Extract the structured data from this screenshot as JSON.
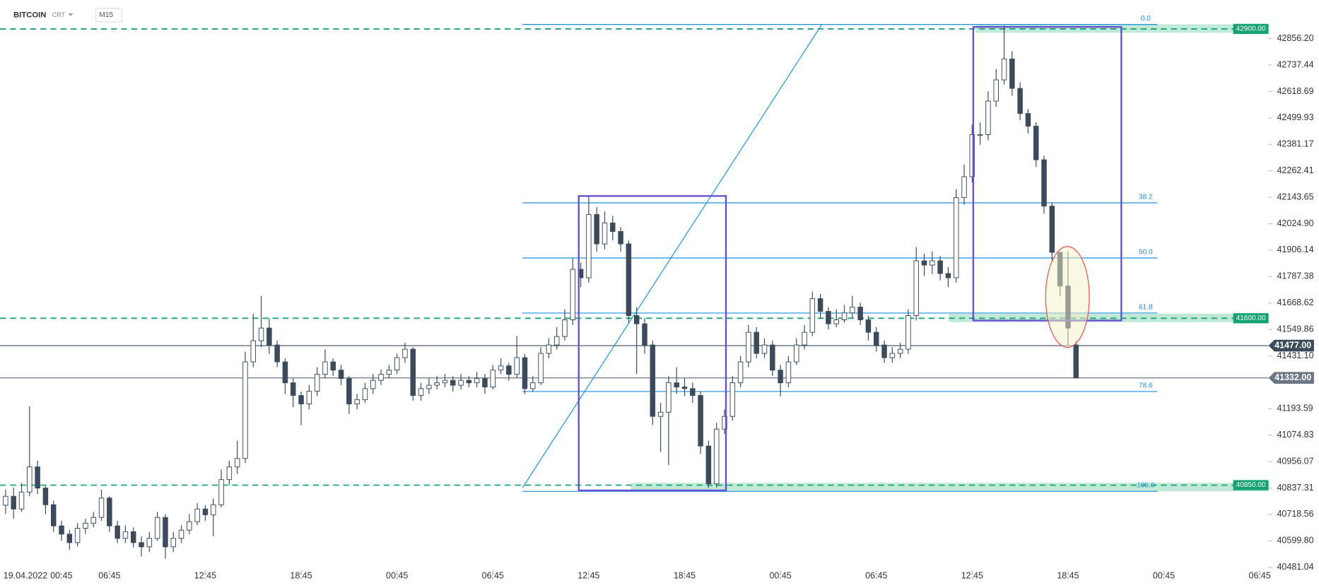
{
  "chart_data": {
    "type": "candlestick",
    "instrument": "BITCOIN",
    "badge": "CRT",
    "timeframe": "M15",
    "start_date": "19.04.2022",
    "start_time": "00:45",
    "xlim": [
      -0.1,
      79.3
    ],
    "ylim": [
      40422,
      43030
    ],
    "xticks": [
      {
        "value": 6.75,
        "label": "06:45"
      },
      {
        "value": 12.75,
        "label": "12:45"
      },
      {
        "value": 18.75,
        "label": "18:45"
      },
      {
        "value": 24.75,
        "label": "00:45"
      },
      {
        "value": 30.75,
        "label": "06:45"
      },
      {
        "value": 36.75,
        "label": "12:45"
      },
      {
        "value": 42.75,
        "label": "18:45"
      },
      {
        "value": 48.75,
        "label": "00:45"
      },
      {
        "value": 54.75,
        "label": "06:45"
      },
      {
        "value": 60.75,
        "label": "12:45"
      },
      {
        "value": 66.75,
        "label": "18:45"
      },
      {
        "value": 72.75,
        "label": "00:45"
      },
      {
        "value": 78.75,
        "label": "06:45"
      }
    ],
    "yticks": [
      {
        "value": 42856.2,
        "label": "42856.20"
      },
      42737.44,
      42618.69,
      42499.93,
      42381.17,
      42262.41,
      42143.65,
      {
        "value": 42024.9,
        "label": "42024.90"
      },
      41906.14,
      41787.38,
      41668.62,
      41549.86,
      {
        "value": 41431.1,
        "label": "41431.10"
      },
      41193.59,
      41074.83,
      40956.07,
      40837.31,
      40718.56,
      {
        "value": 40599.8,
        "label": "40599.80"
      },
      40481.04
    ],
    "levels": [
      {
        "value": 42900,
        "label": "42900.00"
      },
      {
        "value": 41600,
        "label": "41600.00"
      },
      {
        "value": 40850,
        "label": "40850.00"
      }
    ],
    "price_lines": [
      {
        "value": 41477,
        "label": "41477.00"
      },
      {
        "value": 41332,
        "label": "41332.00"
      }
    ],
    "fibonacci": {
      "high": 42920,
      "low": 40822,
      "levels": [
        {
          "value": 0,
          "label": "0.0"
        },
        {
          "value": 38.2,
          "label": "38.2"
        },
        {
          "value": 50,
          "label": "50.0"
        },
        {
          "value": 61.8,
          "label": "61.8"
        },
        {
          "value": 78.6,
          "label": "78.6"
        },
        {
          "value": 100,
          "label": "100.0"
        }
      ]
    },
    "candles": [
      [
        0.25,
        40760,
        40830,
        40720,
        40800
      ],
      [
        0.75,
        40800,
        40840,
        40700,
        40743
      ],
      [
        1.25,
        40743,
        40860,
        40730,
        40819
      ],
      [
        1.75,
        40819,
        41204,
        40800,
        40932
      ],
      [
        2.25,
        40932,
        40960,
        40810,
        40837
      ],
      [
        2.75,
        40837,
        40850,
        40720,
        40762
      ],
      [
        3.25,
        40762,
        40780,
        40640,
        40667
      ],
      [
        3.75,
        40667,
        40690,
        40600,
        40630
      ],
      [
        4.25,
        40630,
        40650,
        40560,
        40592
      ],
      [
        4.75,
        40592,
        40680,
        40575,
        40656
      ],
      [
        5.25,
        40656,
        40700,
        40630,
        40679
      ],
      [
        5.75,
        40679,
        40730,
        40660,
        40705
      ],
      [
        6.25,
        40705,
        40830,
        40690,
        40792
      ],
      [
        6.75,
        40792,
        40800,
        40640,
        40667
      ],
      [
        7.25,
        40667,
        40690,
        40590,
        40611
      ],
      [
        7.75,
        40611,
        40670,
        40590,
        40641
      ],
      [
        8.25,
        40641,
        40660,
        40570,
        40592
      ],
      [
        8.75,
        40592,
        40620,
        40530,
        40573
      ],
      [
        9.25,
        40573,
        40640,
        40550,
        40611
      ],
      [
        9.75,
        40611,
        40730,
        40600,
        40705
      ],
      [
        10.25,
        40705,
        40720,
        40520,
        40573
      ],
      [
        10.75,
        40573,
        40640,
        40550,
        40611
      ],
      [
        11.25,
        40611,
        40670,
        40590,
        40648
      ],
      [
        11.75,
        40648,
        40720,
        40630,
        40686
      ],
      [
        12.25,
        40686,
        40770,
        40670,
        40743
      ],
      [
        12.75,
        40743,
        40760,
        40690,
        40717
      ],
      [
        13.25,
        40717,
        40790,
        40620,
        40762
      ],
      [
        13.75,
        40762,
        40920,
        40750,
        40875
      ],
      [
        14.25,
        40875,
        40960,
        40850,
        40932
      ],
      [
        14.75,
        40932,
        41050,
        40900,
        40970
      ],
      [
        15.25,
        40970,
        41450,
        40950,
        41404
      ],
      [
        15.75,
        41404,
        41620,
        41380,
        41499
      ],
      [
        16.25,
        41499,
        41700,
        41470,
        41556
      ],
      [
        16.75,
        41556,
        41600,
        41440,
        41480
      ],
      [
        17.25,
        41480,
        41500,
        41380,
        41404
      ],
      [
        17.75,
        41404,
        41420,
        41260,
        41310
      ],
      [
        18.25,
        41310,
        41330,
        41200,
        41253
      ],
      [
        18.75,
        41253,
        41270,
        41120,
        41215
      ],
      [
        19.25,
        41215,
        41300,
        41190,
        41272
      ],
      [
        19.75,
        41272,
        41380,
        41250,
        41348
      ],
      [
        20.25,
        41348,
        41460,
        41330,
        41404
      ],
      [
        20.75,
        41404,
        41420,
        41340,
        41367
      ],
      [
        21.25,
        41367,
        41390,
        41300,
        41329
      ],
      [
        21.75,
        41329,
        41340,
        41170,
        41215
      ],
      [
        22.25,
        41215,
        41260,
        41190,
        41234
      ],
      [
        22.75,
        41234,
        41310,
        41220,
        41284
      ],
      [
        23.25,
        41284,
        41350,
        41260,
        41321
      ],
      [
        23.75,
        41321,
        41370,
        41300,
        41348
      ],
      [
        24.25,
        41348,
        41390,
        41330,
        41367
      ],
      [
        24.75,
        41367,
        41440,
        41350,
        41423
      ],
      [
        25.25,
        41423,
        41490,
        41400,
        41461
      ],
      [
        25.75,
        41461,
        41470,
        41230,
        41253
      ],
      [
        26.25,
        41253,
        41310,
        41230,
        41284
      ],
      [
        26.75,
        41284,
        41330,
        41260,
        41299
      ],
      [
        27.25,
        41299,
        41340,
        41280,
        41310
      ],
      [
        27.75,
        41310,
        41350,
        41290,
        41321
      ],
      [
        28.25,
        41321,
        41340,
        41270,
        41299
      ],
      [
        28.75,
        41299,
        41350,
        41280,
        41321
      ],
      [
        29.25,
        41321,
        41340,
        41290,
        41310
      ],
      [
        29.75,
        41310,
        41360,
        41290,
        41329
      ],
      [
        30.25,
        41329,
        41350,
        41260,
        41291
      ],
      [
        30.75,
        41291,
        41390,
        41280,
        41367
      ],
      [
        31.25,
        41367,
        41420,
        41350,
        41386
      ],
      [
        31.75,
        41386,
        41400,
        41320,
        41348
      ],
      [
        32.25,
        41348,
        41520,
        41330,
        41423
      ],
      [
        32.75,
        41423,
        41440,
        41260,
        41284
      ],
      [
        33.25,
        41284,
        41340,
        41270,
        41310
      ],
      [
        33.75,
        41310,
        41470,
        41300,
        41442
      ],
      [
        34.25,
        41442,
        41510,
        41420,
        41480
      ],
      [
        34.75,
        41480,
        41560,
        41460,
        41518
      ],
      [
        35.25,
        41518,
        41640,
        41500,
        41593
      ],
      [
        35.75,
        41593,
        41870,
        41570,
        41820
      ],
      [
        36.25,
        41820,
        41850,
        41740,
        41782
      ],
      [
        36.75,
        41782,
        42153,
        41760,
        42066
      ],
      [
        37.25,
        42066,
        42100,
        41900,
        41934
      ],
      [
        37.75,
        41934,
        42080,
        41910,
        42028
      ],
      [
        38.25,
        42028,
        42060,
        41950,
        41990
      ],
      [
        38.75,
        41990,
        42010,
        41900,
        41934
      ],
      [
        39.25,
        41934,
        41950,
        41580,
        41612
      ],
      [
        39.75,
        41612,
        41650,
        41350,
        41575
      ],
      [
        40.25,
        41575,
        41600,
        41440,
        41480
      ],
      [
        40.75,
        41480,
        41500,
        41120,
        41159
      ],
      [
        41.25,
        41159,
        41220,
        41000,
        41178
      ],
      [
        41.75,
        41178,
        41340,
        40940,
        41310
      ],
      [
        42.25,
        41310,
        41380,
        41260,
        41291
      ],
      [
        42.75,
        41291,
        41330,
        41250,
        41284
      ],
      [
        43.25,
        41284,
        41310,
        41220,
        41253
      ],
      [
        43.75,
        41253,
        41270,
        40990,
        41026
      ],
      [
        44.25,
        41026,
        41050,
        40837,
        40856
      ],
      [
        44.75,
        40856,
        41130,
        40840,
        41102
      ],
      [
        45.25,
        41102,
        41190,
        41080,
        41159
      ],
      [
        45.75,
        41159,
        41340,
        41140,
        41310
      ],
      [
        46.25,
        41310,
        41430,
        41290,
        41404
      ],
      [
        46.75,
        41404,
        41570,
        41380,
        41537
      ],
      [
        47.25,
        41537,
        41560,
        41420,
        41442
      ],
      [
        47.75,
        41442,
        41510,
        41420,
        41480
      ],
      [
        48.25,
        41480,
        41500,
        41340,
        41367
      ],
      [
        48.75,
        41367,
        41390,
        41250,
        41310
      ],
      [
        49.25,
        41310,
        41430,
        41290,
        41404
      ],
      [
        49.75,
        41404,
        41510,
        41390,
        41480
      ],
      [
        50.25,
        41480,
        41570,
        41460,
        41537
      ],
      [
        50.75,
        41537,
        41720,
        41520,
        41688
      ],
      [
        51.25,
        41688,
        41710,
        41600,
        41631
      ],
      [
        51.75,
        41631,
        41650,
        41550,
        41575
      ],
      [
        52.25,
        41575,
        41640,
        41560,
        41593
      ],
      [
        52.75,
        41593,
        41660,
        41580,
        41624
      ],
      [
        53.25,
        41624,
        41700,
        41600,
        41650
      ],
      [
        53.75,
        41650,
        41670,
        41570,
        41593
      ],
      [
        54.25,
        41593,
        41610,
        41500,
        41537
      ],
      [
        54.75,
        41537,
        41560,
        41450,
        41480
      ],
      [
        55.25,
        41480,
        41500,
        41400,
        41423
      ],
      [
        55.75,
        41423,
        41470,
        41400,
        41442
      ],
      [
        56.25,
        41442,
        41490,
        41420,
        41461
      ],
      [
        56.75,
        41461,
        41640,
        41440,
        41612
      ],
      [
        57.25,
        41612,
        41920,
        41590,
        41858
      ],
      [
        57.75,
        41858,
        41890,
        41790,
        41839
      ],
      [
        58.25,
        41839,
        41900,
        41800,
        41858
      ],
      [
        58.75,
        41858,
        41880,
        41770,
        41801
      ],
      [
        59.25,
        41801,
        41830,
        41740,
        41782
      ],
      [
        59.75,
        41782,
        42180,
        41760,
        42142
      ],
      [
        60.25,
        42142,
        42290,
        42110,
        42236
      ],
      [
        60.75,
        42236,
        42470,
        42210,
        42425
      ],
      [
        61.25,
        42425,
        42480,
        42380,
        42425
      ],
      [
        61.75,
        42425,
        42620,
        42400,
        42576
      ],
      [
        62.25,
        42576,
        42720,
        42550,
        42671
      ],
      [
        62.75,
        42671,
        42916,
        42650,
        42765
      ],
      [
        63.25,
        42765,
        42800,
        42600,
        42633
      ],
      [
        63.75,
        42633,
        42660,
        42490,
        42520
      ],
      [
        64.25,
        42520,
        42540,
        42430,
        42463
      ],
      [
        64.75,
        42463,
        42480,
        42280,
        42312
      ],
      [
        65.25,
        42312,
        42330,
        42070,
        42104
      ],
      [
        65.75,
        42104,
        42120,
        41860,
        41896
      ],
      [
        66.25,
        41896,
        41900,
        41700,
        41745
      ],
      [
        66.75,
        41745,
        41900,
        41480,
        41556
      ],
      [
        67.25,
        41480,
        41500,
        41332,
        41332
      ]
    ]
  }
}
